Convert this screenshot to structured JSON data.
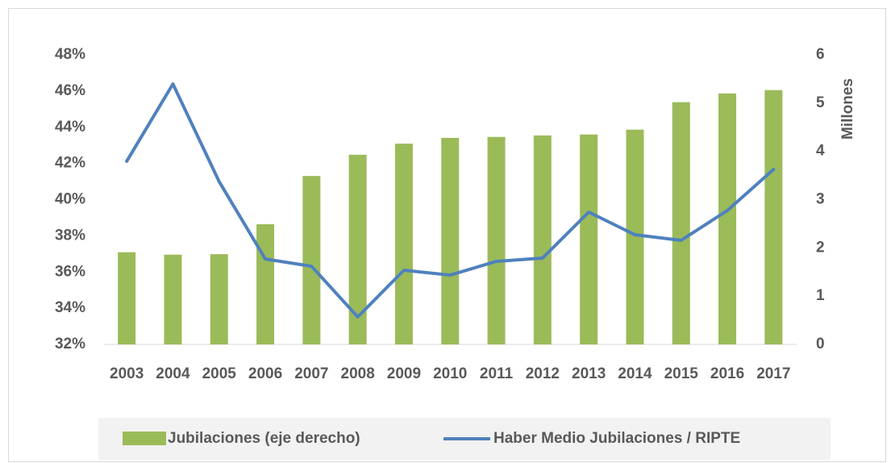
{
  "chart_data": {
    "type": "combo",
    "categories": [
      "2003",
      "2004",
      "2005",
      "2006",
      "2007",
      "2008",
      "2009",
      "2010",
      "2011",
      "2012",
      "2013",
      "2014",
      "2015",
      "2016",
      "2017"
    ],
    "series": [
      {
        "name": "Jubilaciones (eje derecho)",
        "type": "bar",
        "axis": "y2",
        "color": "#9bbb59",
        "values": [
          1.91,
          1.86,
          1.87,
          2.49,
          3.49,
          3.93,
          4.16,
          4.28,
          4.3,
          4.33,
          4.35,
          4.45,
          5.02,
          5.2,
          5.27
        ]
      },
      {
        "name": "Haber Medio Jubilaciones / RIPTE",
        "type": "line",
        "color": "#4f81bd",
        "values": [
          42.12,
          46.39,
          41.0,
          36.72,
          36.32,
          33.52,
          36.1,
          35.83,
          36.59,
          36.77,
          39.31,
          38.06,
          37.75,
          39.4,
          41.67
        ]
      }
    ],
    "ylim": [
      32,
      48
    ],
    "yticks": [
      {
        "value": 32,
        "label": "32%"
      },
      {
        "value": 34,
        "label": "34%"
      },
      {
        "value": 36,
        "label": "36%"
      },
      {
        "value": 38,
        "label": "38%"
      },
      {
        "value": 40,
        "label": "40%"
      },
      {
        "value": 42,
        "label": "42%"
      },
      {
        "value": 44,
        "label": "44%"
      },
      {
        "value": 46,
        "label": "46%"
      },
      {
        "value": 48,
        "label": "48%"
      }
    ],
    "y2lim": [
      0,
      6
    ],
    "y2ticks": [
      0,
      1,
      2,
      3,
      4,
      5,
      6
    ],
    "y2label": "Millones",
    "grid": false,
    "legend": "bottom"
  }
}
